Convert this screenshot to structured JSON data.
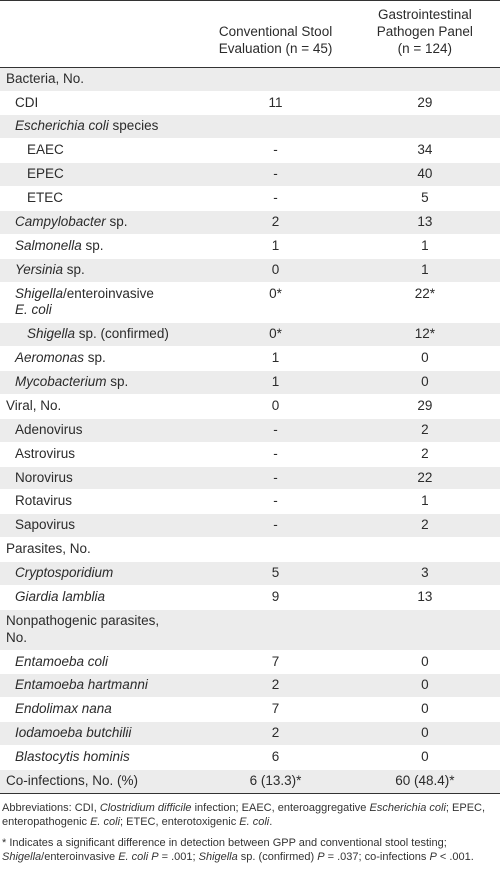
{
  "header": {
    "col1": "",
    "col2": [
      "Conventional Stool",
      "Evaluation (n = 45)"
    ],
    "col3": [
      "Gastrointestinal",
      "Pathogen Panel",
      "(n = 124)"
    ]
  },
  "rows": [
    {
      "id": "bacteria",
      "indent": 0,
      "parts": [
        {
          "t": "Bacteria, No.",
          "i": false
        }
      ],
      "v1": "",
      "v2": ""
    },
    {
      "id": "cdi",
      "indent": 1,
      "parts": [
        {
          "t": "CDI",
          "i": false
        }
      ],
      "v1": "11",
      "v2": "29"
    },
    {
      "id": "ecoli",
      "indent": 1,
      "parts": [
        {
          "t": "Escherichia coli",
          "i": true
        },
        {
          "t": " species",
          "i": false
        }
      ],
      "v1": "",
      "v2": ""
    },
    {
      "id": "eaec",
      "indent": 2,
      "parts": [
        {
          "t": "EAEC",
          "i": false
        }
      ],
      "v1": "-",
      "v2": "34"
    },
    {
      "id": "epec",
      "indent": 2,
      "parts": [
        {
          "t": "EPEC",
          "i": false
        }
      ],
      "v1": "-",
      "v2": "40"
    },
    {
      "id": "etec",
      "indent": 2,
      "parts": [
        {
          "t": "ETEC",
          "i": false
        }
      ],
      "v1": "-",
      "v2": "5"
    },
    {
      "id": "campylobacter",
      "indent": 1,
      "parts": [
        {
          "t": "Campylobacter",
          "i": true
        },
        {
          "t": " sp.",
          "i": false
        }
      ],
      "v1": "2",
      "v2": "13"
    },
    {
      "id": "salmonella",
      "indent": 1,
      "parts": [
        {
          "t": "Salmonella",
          "i": true
        },
        {
          "t": " sp.",
          "i": false
        }
      ],
      "v1": "1",
      "v2": "1"
    },
    {
      "id": "yersinia",
      "indent": 1,
      "parts": [
        {
          "t": "Yersinia",
          "i": true
        },
        {
          "t": " sp.",
          "i": false
        }
      ],
      "v1": "0",
      "v2": "1"
    },
    {
      "id": "shigella",
      "indent": 1,
      "parts": [
        {
          "t": "Shigella",
          "i": true
        },
        {
          "t": "/enteroinvasive",
          "i": false
        },
        {
          "br": true
        },
        {
          "t": "E. coli",
          "i": true
        }
      ],
      "v1": "0*",
      "v2": "22*"
    },
    {
      "id": "shigella-confirmed",
      "indent": 2,
      "parts": [
        {
          "t": "Shigella",
          "i": true
        },
        {
          "t": " sp. (confirmed)",
          "i": false
        }
      ],
      "v1": "0*",
      "v2": "12*"
    },
    {
      "id": "aeromonas",
      "indent": 1,
      "parts": [
        {
          "t": "Aeromonas",
          "i": true
        },
        {
          "t": " sp.",
          "i": false
        }
      ],
      "v1": "1",
      "v2": "0"
    },
    {
      "id": "mycobacterium",
      "indent": 1,
      "parts": [
        {
          "t": "Mycobacterium",
          "i": true
        },
        {
          "t": " sp.",
          "i": false
        }
      ],
      "v1": "1",
      "v2": "0"
    },
    {
      "id": "viral",
      "indent": 0,
      "parts": [
        {
          "t": "Viral, No.",
          "i": false
        }
      ],
      "v1": "0",
      "v2": "29"
    },
    {
      "id": "adenovirus",
      "indent": 1,
      "parts": [
        {
          "t": "Adenovirus",
          "i": false
        }
      ],
      "v1": "-",
      "v2": "2"
    },
    {
      "id": "astrovirus",
      "indent": 1,
      "parts": [
        {
          "t": "Astrovirus",
          "i": false
        }
      ],
      "v1": "-",
      "v2": "2"
    },
    {
      "id": "norovirus",
      "indent": 1,
      "parts": [
        {
          "t": "Norovirus",
          "i": false
        }
      ],
      "v1": "-",
      "v2": "22"
    },
    {
      "id": "rotavirus",
      "indent": 1,
      "parts": [
        {
          "t": "Rotavirus",
          "i": false
        }
      ],
      "v1": "-",
      "v2": "1"
    },
    {
      "id": "sapovirus",
      "indent": 1,
      "parts": [
        {
          "t": "Sapovirus",
          "i": false
        }
      ],
      "v1": "-",
      "v2": "2"
    },
    {
      "id": "parasites",
      "indent": 0,
      "parts": [
        {
          "t": "Parasites, No.",
          "i": false
        }
      ],
      "v1": "",
      "v2": ""
    },
    {
      "id": "cryptosporidium",
      "indent": 1,
      "parts": [
        {
          "t": "Cryptosporidium",
          "i": true
        }
      ],
      "v1": "5",
      "v2": "3"
    },
    {
      "id": "giardia",
      "indent": 1,
      "parts": [
        {
          "t": "Giardia lamblia",
          "i": true
        }
      ],
      "v1": "9",
      "v2": "13"
    },
    {
      "id": "nonpathogenic",
      "indent": 0,
      "parts": [
        {
          "t": "Nonpathogenic parasites,",
          "i": false
        },
        {
          "br": true
        },
        {
          "t": "   No.",
          "i": false
        }
      ],
      "v1": "",
      "v2": ""
    },
    {
      "id": "entamoeba-coli",
      "indent": 1,
      "parts": [
        {
          "t": "Entamoeba coli",
          "i": true
        }
      ],
      "v1": "7",
      "v2": "0"
    },
    {
      "id": "entamoeba-hartmanni",
      "indent": 1,
      "parts": [
        {
          "t": "Entamoeba hartmanni",
          "i": true
        }
      ],
      "v1": "2",
      "v2": "0"
    },
    {
      "id": "endolimax",
      "indent": 1,
      "parts": [
        {
          "t": "Endolimax nana",
          "i": true
        }
      ],
      "v1": "7",
      "v2": "0"
    },
    {
      "id": "iodamoeba",
      "indent": 1,
      "parts": [
        {
          "t": "Iodamoeba butchilii",
          "i": true
        }
      ],
      "v1": "2",
      "v2": "0"
    },
    {
      "id": "blastocytis",
      "indent": 1,
      "parts": [
        {
          "t": "Blastocytis hominis",
          "i": true
        }
      ],
      "v1": "6",
      "v2": "0"
    },
    {
      "id": "coinfections",
      "indent": 0,
      "parts": [
        {
          "t": "Co-infections, No. (%)",
          "i": false
        }
      ],
      "v1": "6 (13.3)*",
      "v2": "60 (48.4)*"
    }
  ],
  "footnotes": {
    "abbrev": [
      {
        "t": "Abbreviations: CDI, ",
        "i": false
      },
      {
        "t": "Clostridium difficile",
        "i": true
      },
      {
        "t": " infection; EAEC, enteroaggregative ",
        "i": false
      },
      {
        "t": "Escherichia coli",
        "i": true
      },
      {
        "t": "; EPEC, enteropathogenic ",
        "i": false
      },
      {
        "t": "E. coli",
        "i": true
      },
      {
        "t": "; ETEC, enterotoxigenic ",
        "i": false
      },
      {
        "t": "E. coli",
        "i": true
      },
      {
        "t": ".",
        "i": false
      }
    ],
    "star": [
      {
        "t": "* Indicates a significant difference in detection between GPP and conventional stool testing; ",
        "i": false
      },
      {
        "t": "Shigella",
        "i": true
      },
      {
        "t": "/enteroinvasive ",
        "i": false
      },
      {
        "t": "E. coli P",
        "i": true
      },
      {
        "t": " = .001; ",
        "i": false
      },
      {
        "t": "Shigella",
        "i": true
      },
      {
        "t": " sp. (confirmed) ",
        "i": false
      },
      {
        "t": "P",
        "i": true
      },
      {
        "t": " = .037; co-infections ",
        "i": false
      },
      {
        "t": "P",
        "i": true
      },
      {
        "t": " < .001.",
        "i": false
      }
    ]
  }
}
